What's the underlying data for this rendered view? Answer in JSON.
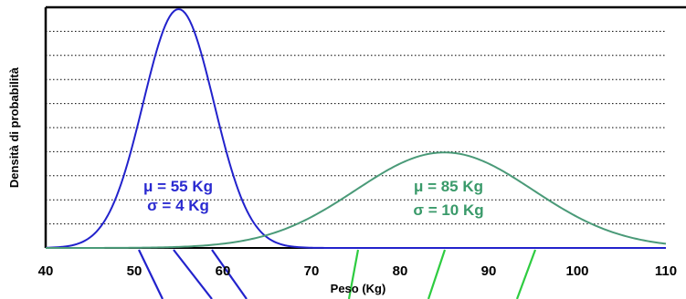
{
  "chart_data": {
    "type": "line",
    "title": "",
    "xlabel": "Peso (Kg)",
    "ylabel": "Densità di probabilità",
    "xlim": [
      40,
      110
    ],
    "x_ticks": [
      "40",
      "50",
      "60",
      "70",
      "80",
      "90",
      "100",
      "110"
    ],
    "grid": "horizontal-dotted",
    "series": [
      {
        "distribution": "normal",
        "mean": 55,
        "sd": 4,
        "color": "#2222cc",
        "labels": [
          "μ = 55 Kg",
          "σ = 4 Kg"
        ]
      },
      {
        "distribution": "normal",
        "mean": 85,
        "sd": 10,
        "color": "#4a9a78",
        "labels": [
          "μ = 85 Kg",
          "σ = 10 Kg"
        ]
      }
    ],
    "icons": [
      "blue-diagonal-stripes",
      "green-diagonal-stripes"
    ]
  }
}
